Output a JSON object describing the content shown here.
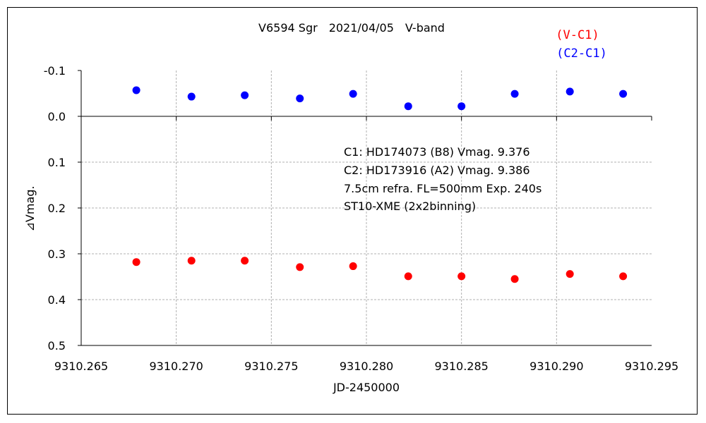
{
  "chart_data": {
    "type": "scatter",
    "title": "V6594 Sgr　2021/04/05　V-band",
    "xlabel": "JD-2450000",
    "ylabel": "⊿Vmag.",
    "xlim": [
      9310.265,
      9310.295
    ],
    "ylim": [
      -0.1,
      0.5
    ],
    "y_inverted": true,
    "grid": true,
    "legend_position": "top-right",
    "x_ticks": [
      "9310.265",
      "9310.270",
      "9310.275",
      "9310.280",
      "9310.285",
      "9310.290",
      "9310.295"
    ],
    "y_ticks": [
      "-0.1",
      "0.0",
      "0.1",
      "0.2",
      "0.3",
      "0.4",
      "0.5"
    ],
    "annotation": [
      "C1: HD174073 (B8) Vmag. 9.376",
      "C2: HD173916 (A2) Vmag. 9.386",
      "7.5cm refra. FL=500mm  Exp. 240s",
      "ST10-XME (2x2binning)"
    ],
    "series": [
      {
        "name": "(V-C1)",
        "color": "#ff0000",
        "points": [
          [
            9310.2679,
            0.318
          ],
          [
            9310.2708,
            0.315
          ],
          [
            9310.2736,
            0.315
          ],
          [
            9310.2765,
            0.329
          ],
          [
            9310.2793,
            0.327
          ],
          [
            9310.2822,
            0.349
          ],
          [
            9310.285,
            0.349
          ],
          [
            9310.2878,
            0.355
          ],
          [
            9310.2907,
            0.344
          ],
          [
            9310.2935,
            0.349
          ]
        ]
      },
      {
        "name": "(C2-C1)",
        "color": "#0000ff",
        "points": [
          [
            9310.2679,
            -0.057
          ],
          [
            9310.2708,
            -0.043
          ],
          [
            9310.2736,
            -0.046
          ],
          [
            9310.2765,
            -0.039
          ],
          [
            9310.2793,
            -0.049
          ],
          [
            9310.2822,
            -0.022
          ],
          [
            9310.285,
            -0.022
          ],
          [
            9310.2878,
            -0.049
          ],
          [
            9310.2907,
            -0.054
          ],
          [
            9310.2935,
            -0.049
          ]
        ]
      }
    ]
  }
}
